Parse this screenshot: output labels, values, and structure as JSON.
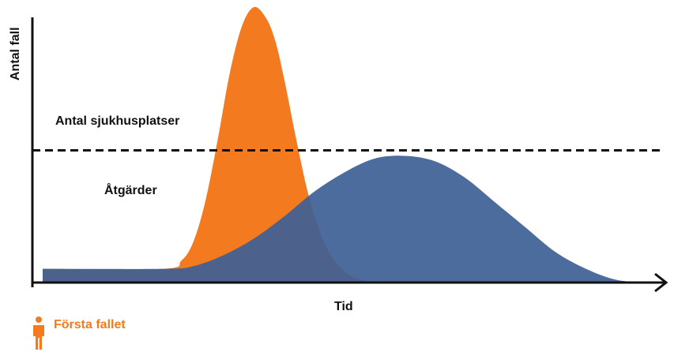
{
  "chart_data": {
    "type": "area",
    "title": "",
    "xlabel": "Tid",
    "ylabel": "Antal fall",
    "xlim": [
      0,
      100
    ],
    "ylim": [
      0,
      100
    ],
    "grid": false,
    "series": [
      {
        "color": "#f47a1f",
        "x": [
          0,
          20,
          23,
          25,
          27,
          29,
          31,
          33,
          35,
          37,
          38.5,
          40,
          42,
          44,
          46,
          48,
          50,
          52,
          54,
          56,
          58,
          61,
          66,
          70,
          100
        ],
        "values": [
          5,
          5,
          8,
          15,
          30,
          52,
          76,
          93,
          100,
          96,
          88,
          74,
          52,
          32,
          18,
          9,
          4,
          1.5,
          0.5,
          0,
          0,
          0,
          0,
          0,
          0
        ]
      },
      {
        "color": "#3d5f96",
        "x": [
          0,
          20,
          25,
          30,
          35,
          40,
          45,
          50,
          55,
          60,
          65,
          70,
          75,
          80,
          85,
          90,
          95,
          100
        ],
        "values": [
          5,
          5,
          6,
          10,
          16,
          24,
          33,
          40,
          45,
          46,
          44,
          38,
          29,
          20,
          11,
          5,
          1,
          0
        ]
      }
    ],
    "annotations": [
      {
        "label": "Antal sjukhusplatser",
        "type": "hline",
        "y": 48
      },
      {
        "label": "Åtgärder"
      }
    ]
  },
  "legend": {
    "first_case": "Första fallet",
    "icon": "person-icon",
    "color": "#f47a20"
  }
}
